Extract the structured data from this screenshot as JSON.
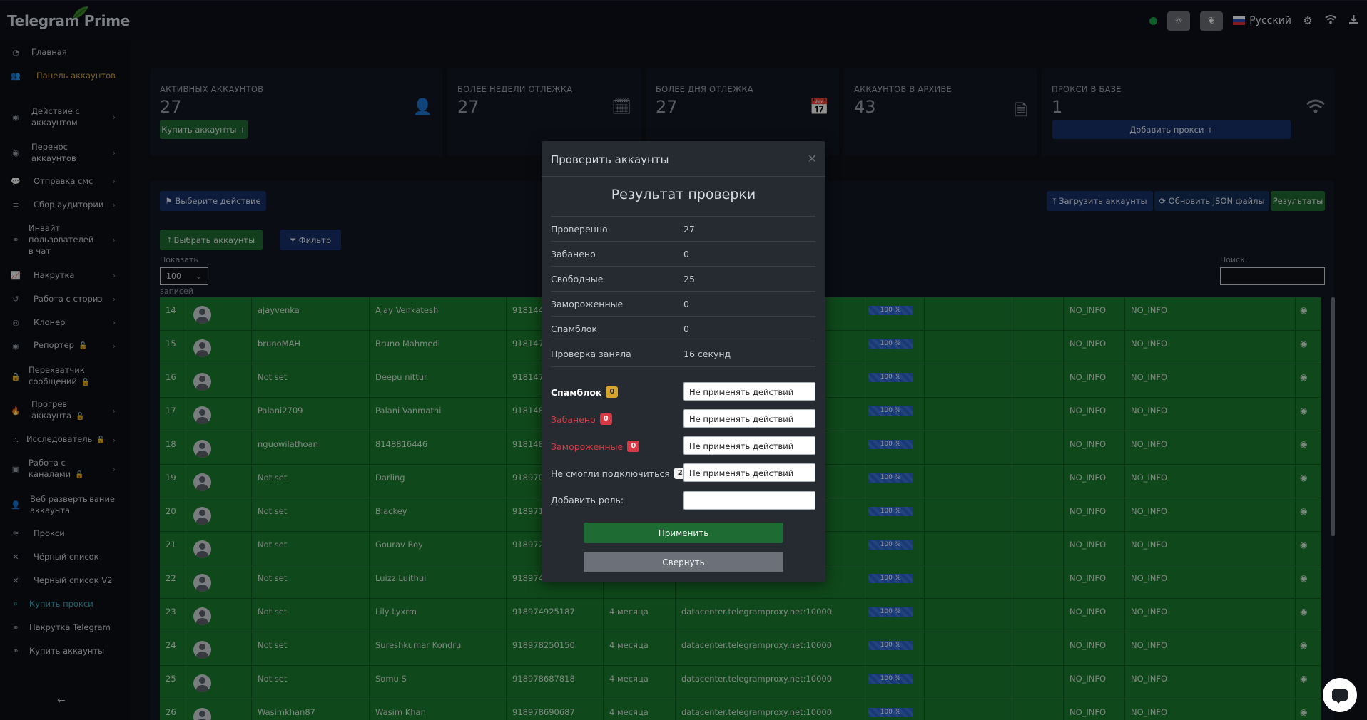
{
  "app": {
    "title": "Telegram Prime",
    "language": "Русский"
  },
  "sidebar": {
    "items": [
      {
        "label": "Главная",
        "icon": "gauge-icon"
      },
      {
        "label": "Панель аккаунтов",
        "icon": "users-icon"
      },
      {
        "label": "Действие с аккаунтом",
        "icon": "user-circle-icon"
      },
      {
        "label": "Перенос аккаунтов",
        "icon": "user-circle-icon"
      },
      {
        "label": "Отправка смс",
        "icon": "comments-icon"
      },
      {
        "label": "Сбор аудитории",
        "icon": "database-icon"
      },
      {
        "label": "Инвайт пользователей в чат",
        "icon": "handshake-icon"
      },
      {
        "label": "Накрутка",
        "icon": "chart-line-icon"
      },
      {
        "label": "Работа с сториз",
        "icon": "history-icon"
      },
      {
        "label": "Клонер",
        "icon": "clone-icon"
      },
      {
        "label": "Репортер",
        "icon": "flag-icon"
      },
      {
        "label": "Перехватчик сообщений",
        "icon": "lock-icon"
      },
      {
        "label": "Прогрев аккаунта",
        "icon": "fire-icon"
      },
      {
        "label": "Исследователь",
        "icon": "sitemap-icon"
      },
      {
        "label": "Работа с каналами",
        "icon": "address-card-icon"
      },
      {
        "label": "Веб развертывание аккаунта",
        "icon": "user-icon"
      },
      {
        "label": "Прокси",
        "icon": "wifi-icon"
      },
      {
        "label": "Чёрный список",
        "icon": "x-icon"
      },
      {
        "label": "Чёрный список V2",
        "icon": "x-icon"
      },
      {
        "label": "Купить прокси",
        "icon": "search-icon"
      },
      {
        "label": "Накрутка Telegram",
        "icon": "handshake-icon"
      },
      {
        "label": "Купить аккаунты",
        "icon": "handshake-icon"
      }
    ]
  },
  "stats": [
    {
      "title": "АКТИВНЫХ АККАУНТОВ",
      "value": "27",
      "icon": "user-icon",
      "button": "Купить аккаунты"
    },
    {
      "title": "БОЛЕЕ НЕДЕЛИ ОТЛЕЖКА",
      "value": "27",
      "icon": "calendar-check-icon"
    },
    {
      "title": "БОЛЕЕ ДНЯ ОТЛЕЖКА",
      "value": "27",
      "icon": "calendar-icon"
    },
    {
      "title": "АККАУНТОВ В АРХИВЕ",
      "value": "43",
      "icon": "file-zip-icon"
    },
    {
      "title": "ПРОКСИ В БАЗЕ",
      "value": "1",
      "icon": "wifi-icon",
      "button": "Добавить прокси"
    }
  ],
  "toolbar": {
    "choose_action": "Выберите действие",
    "upload_accounts": "Загрузить аккаунты",
    "refresh_json": "Обновить JSON файлы",
    "results": "Результаты",
    "select_accounts": "Выбрать аккаунты",
    "filter": "Фильтр",
    "show_label": "Показать",
    "show_value": "100",
    "records_label": "записей",
    "search_label": "Поиск:"
  },
  "table": {
    "rows": [
      {
        "n": "14",
        "user": "ajayvenka",
        "name": "Ajay Venkatesh",
        "phone": "918144",
        "age": "",
        "proxy": "",
        "progress": "100 %",
        "c1": "NO_INFO",
        "c2": "NO_INFO"
      },
      {
        "n": "15",
        "user": "brunoMAH",
        "name": "Bruno Mahmedi",
        "phone": "918147",
        "age": "",
        "proxy": "",
        "progress": "100 %",
        "c1": "NO_INFO",
        "c2": "NO_INFO"
      },
      {
        "n": "16",
        "user": "Not set",
        "name": "Deepu nittur",
        "phone": "918147",
        "age": "",
        "proxy": "",
        "progress": "100 %",
        "c1": "NO_INFO",
        "c2": "NO_INFO"
      },
      {
        "n": "17",
        "user": "Palani2709",
        "name": "Palani Vanmathi",
        "phone": "918148",
        "age": "",
        "proxy": "",
        "progress": "100 %",
        "c1": "NO_INFO",
        "c2": "NO_INFO"
      },
      {
        "n": "18",
        "user": "nguowilathoan",
        "name": "8148816446",
        "phone": "918148",
        "age": "",
        "proxy": "",
        "progress": "100 %",
        "c1": "NO_INFO",
        "c2": "NO_INFO"
      },
      {
        "n": "19",
        "user": "Not set",
        "name": "Darling",
        "phone": "918970",
        "age": "",
        "proxy": "",
        "progress": "100 %",
        "c1": "NO_INFO",
        "c2": "NO_INFO"
      },
      {
        "n": "20",
        "user": "Not set",
        "name": "Blackey",
        "phone": "918971",
        "age": "",
        "proxy": "",
        "progress": "100 %",
        "c1": "NO_INFO",
        "c2": "NO_INFO"
      },
      {
        "n": "21",
        "user": "Not set",
        "name": "Gourav Roy",
        "phone": "918972",
        "age": "",
        "proxy": "",
        "progress": "100 %",
        "c1": "NO_INFO",
        "c2": "NO_INFO"
      },
      {
        "n": "22",
        "user": "Not set",
        "name": "Luizz Luithui",
        "phone": "918974",
        "age": "",
        "proxy": "",
        "progress": "100 %",
        "c1": "NO_INFO",
        "c2": "NO_INFO"
      },
      {
        "n": "23",
        "user": "Not set",
        "name": "Lily Lyxrm",
        "phone": "918974925187",
        "age": "4 месяца",
        "proxy": "datacenter.telegramproxy.net:10000",
        "progress": "100 %",
        "c1": "NO_INFO",
        "c2": "NO_INFO"
      },
      {
        "n": "24",
        "user": "Not set",
        "name": "Sureshkumar Kondru",
        "phone": "918978250150",
        "age": "4 месяца",
        "proxy": "datacenter.telegramproxy.net:10000",
        "progress": "100 %",
        "c1": "NO_INFO",
        "c2": "NO_INFO"
      },
      {
        "n": "25",
        "user": "Not set",
        "name": "Somu S",
        "phone": "918978687818",
        "age": "4 месяца",
        "proxy": "datacenter.telegramproxy.net:10000",
        "progress": "100 %",
        "c1": "NO_INFO",
        "c2": "NO_INFO"
      },
      {
        "n": "26",
        "user": "Wasimkhan87",
        "name": "Wasim Khan",
        "phone": "918978690687",
        "age": "4 месяца",
        "proxy": "datacenter.telegramproxy.net:10000",
        "progress": "100 %",
        "c1": "NO_INFO",
        "c2": "NO_INFO"
      }
    ]
  },
  "modal": {
    "title": "Проверить аккаунты",
    "result_title": "Результат проверки",
    "stats": [
      {
        "k": "Проверенно",
        "v": "27"
      },
      {
        "k": "Забанено",
        "v": "0"
      },
      {
        "k": "Свободные",
        "v": "25"
      },
      {
        "k": "Замороженные",
        "v": "0"
      },
      {
        "k": "Спамблок",
        "v": "0"
      },
      {
        "k": "Проверка заняла",
        "v": "16 секунд"
      }
    ],
    "actions": [
      {
        "k": "Спамблок",
        "badge": "0",
        "color": "#ffffff",
        "select": "Не применять действий"
      },
      {
        "k": "Забанено",
        "badge": "0",
        "color": "#d63a44",
        "select": "Не применять действий"
      },
      {
        "k": "Замороженные",
        "badge": "0",
        "color": "#d63a44",
        "select": "Не применять действий"
      },
      {
        "k": "Не смогли подключиться",
        "badge": "2",
        "color": "#c6c9cf",
        "select": "Не применять действий"
      }
    ],
    "add_role_label": "Добавить роль:",
    "add_role_value": "",
    "apply": "Применить",
    "collapse": "Свернуть"
  }
}
